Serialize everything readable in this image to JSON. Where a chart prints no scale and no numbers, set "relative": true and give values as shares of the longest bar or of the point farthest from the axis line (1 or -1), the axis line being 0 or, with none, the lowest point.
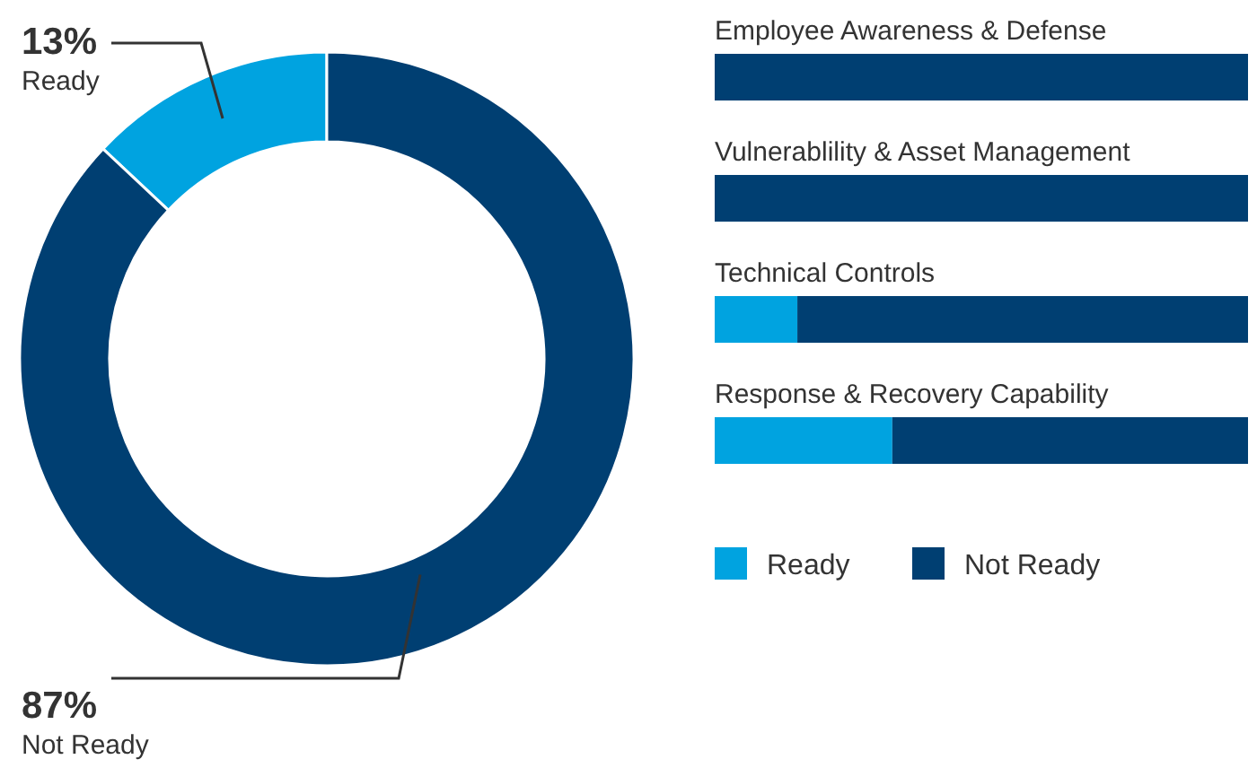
{
  "chart_data": [
    {
      "type": "donut",
      "categories": [
        "Ready",
        "Not Ready"
      ],
      "values": [
        13,
        87
      ],
      "colors": [
        "#00a3e0",
        "#003f72"
      ],
      "value_labels": [
        "13%",
        "87%"
      ]
    },
    {
      "type": "bar",
      "orientation": "horizontal",
      "stacked": true,
      "relative": true,
      "categories": [
        "Employee Awareness & Defense",
        "Vulnerablility & Asset Management",
        "Technical Controls",
        "Response & Recovery Capability"
      ],
      "legend": "bottom left",
      "series": [
        {
          "name": "Ready",
          "color": "#00a3e0",
          "values": [
            0,
            0,
            0.155,
            0.333
          ]
        },
        {
          "name": "Not Ready",
          "color": "#003f72",
          "values": [
            1,
            1,
            0.845,
            0.667
          ]
        }
      ]
    }
  ]
}
